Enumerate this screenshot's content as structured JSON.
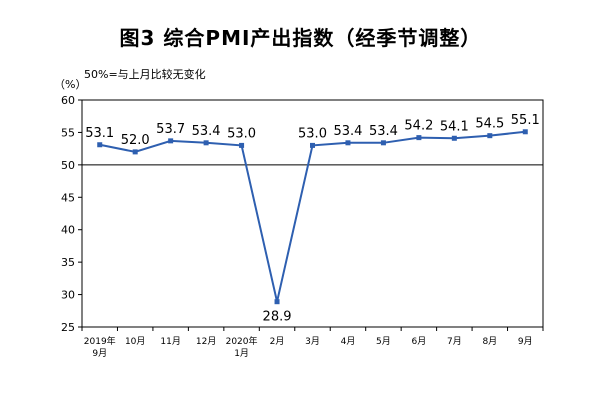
{
  "chart_data": {
    "type": "line",
    "title": "图3 综合PMI产出指数（经季节调整）",
    "unit": "（%）",
    "note": "50%=与上月比较无变化",
    "ylim": [
      25,
      60
    ],
    "yticks": [
      25,
      30,
      35,
      40,
      45,
      50,
      55,
      60
    ],
    "reference_line": 50,
    "categories": [
      [
        "2019年",
        "9月"
      ],
      [
        "10月"
      ],
      [
        "11月"
      ],
      [
        "12月"
      ],
      [
        "2020年",
        "1月"
      ],
      [
        "2月"
      ],
      [
        "3月"
      ],
      [
        "4月"
      ],
      [
        "5月"
      ],
      [
        "6月"
      ],
      [
        "7月"
      ],
      [
        "8月"
      ],
      [
        "9月"
      ]
    ],
    "series": [
      {
        "values": [
          53.1,
          52.0,
          53.7,
          53.4,
          53.0,
          28.9,
          53.0,
          53.4,
          53.4,
          54.2,
          54.1,
          54.5,
          55.1
        ],
        "labels": [
          "53.1",
          "52.0",
          "53.7",
          "53.4",
          "53.0",
          "28.9",
          "53.0",
          "53.4",
          "53.4",
          "54.2",
          "54.1",
          "54.5",
          "55.1"
        ],
        "color": "#2e5fb0"
      }
    ]
  }
}
